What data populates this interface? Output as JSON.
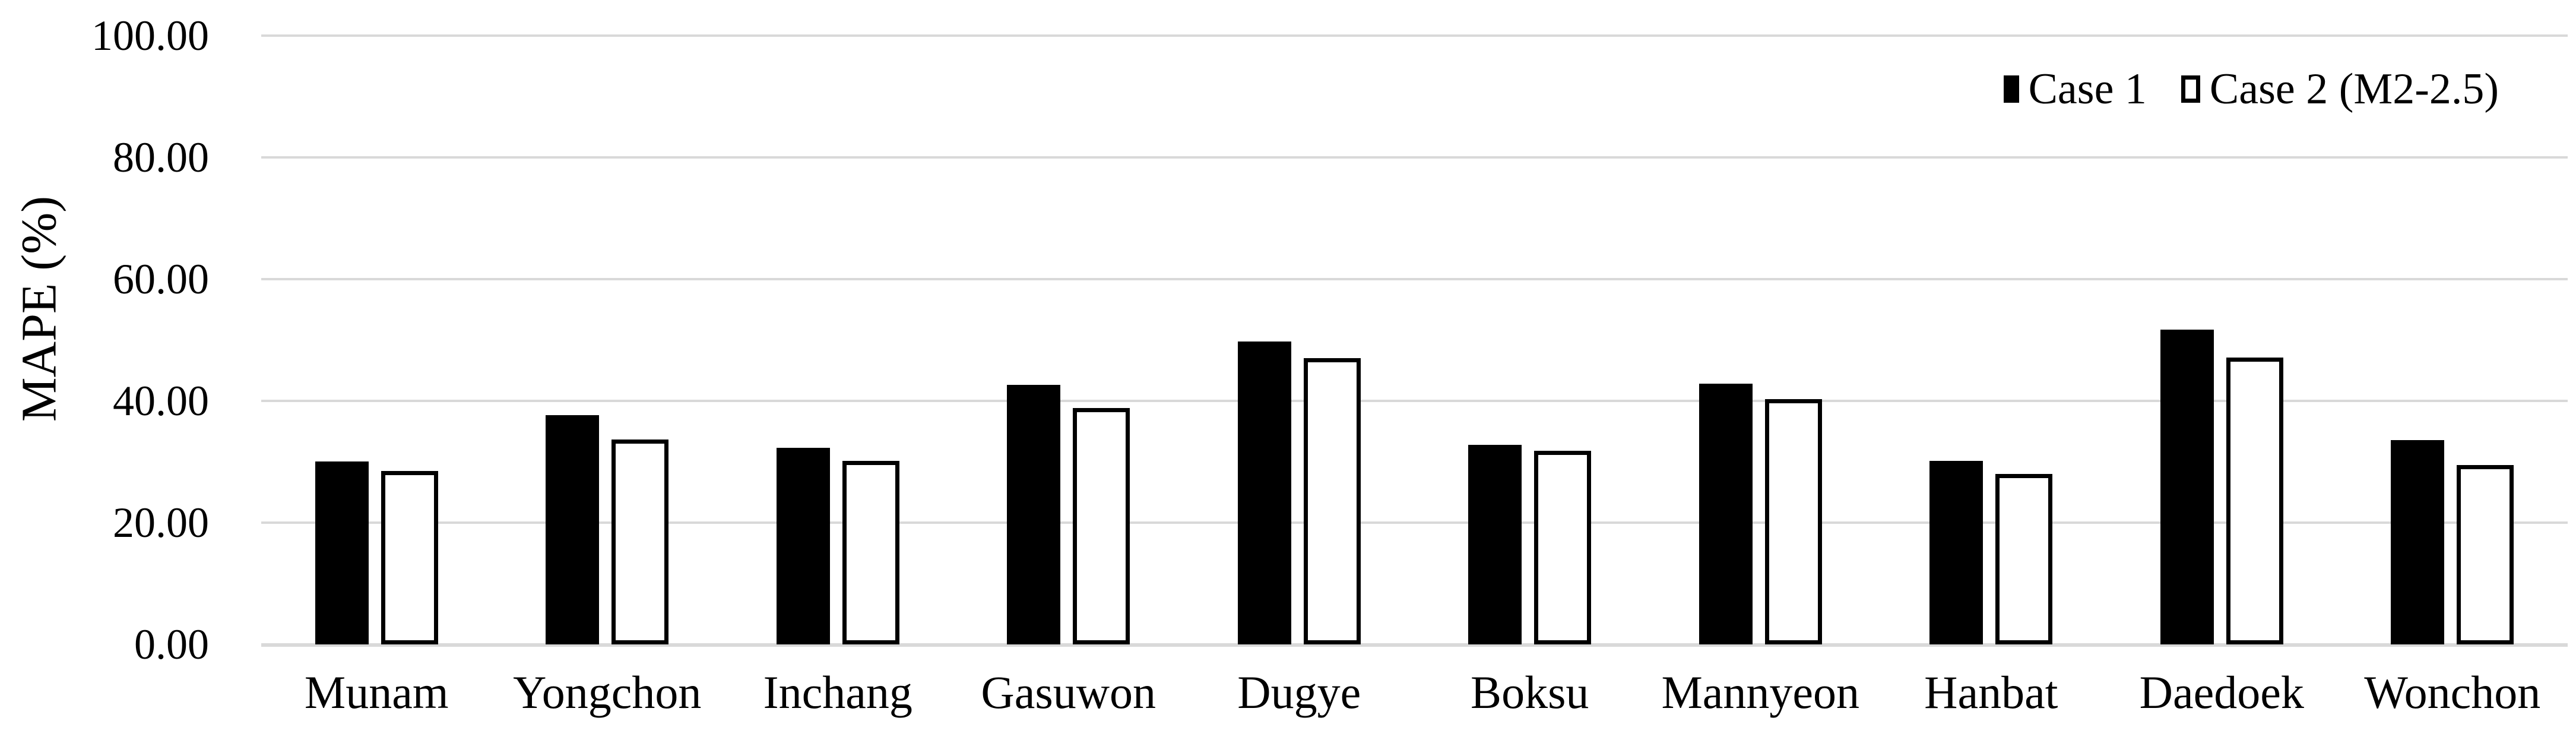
{
  "chart_data": {
    "type": "bar",
    "title": "",
    "xlabel": "",
    "ylabel": "MAPE (%)",
    "ylim": [
      0,
      100
    ],
    "yticks": [
      0,
      20,
      40,
      60,
      80,
      100
    ],
    "ytick_labels": [
      "0.00",
      "20.00",
      "40.00",
      "60.00",
      "80.00",
      "100.00"
    ],
    "grid": "horizontal-only",
    "legend_position": "top-right",
    "categories": [
      "Munam",
      "Yongchon",
      "Inchang",
      "Gasuwon",
      "Dugye",
      "Boksu",
      "Mannyeon",
      "Hanbat",
      "Daedoek",
      "Wonchon"
    ],
    "series": [
      {
        "name": "Case 1",
        "style": "filled",
        "fill": "#000000",
        "values": [
          30.0,
          37.7,
          32.3,
          42.6,
          49.8,
          32.8,
          42.8,
          30.1,
          51.7,
          33.6
        ]
      },
      {
        "name": "Case 2 (M2-2.5)",
        "style": "outlined",
        "fill": "#ffffff",
        "outline": "#000000",
        "values": [
          28.5,
          33.7,
          30.1,
          38.8,
          47.0,
          31.8,
          40.3,
          28.0,
          47.1,
          29.5
        ]
      }
    ]
  },
  "legend": {
    "items": [
      {
        "label": "Case 1",
        "swatch": "black-filled-square"
      },
      {
        "label": "Case 2 (M2-2.5)",
        "swatch": "white-outlined-square"
      }
    ]
  },
  "colors": {
    "background": "#ffffff",
    "grid": "#d9d9d9",
    "axis": "#d9d9d9",
    "text": "#000000",
    "bar_fill": "#000000",
    "bar_outline": "#000000"
  }
}
